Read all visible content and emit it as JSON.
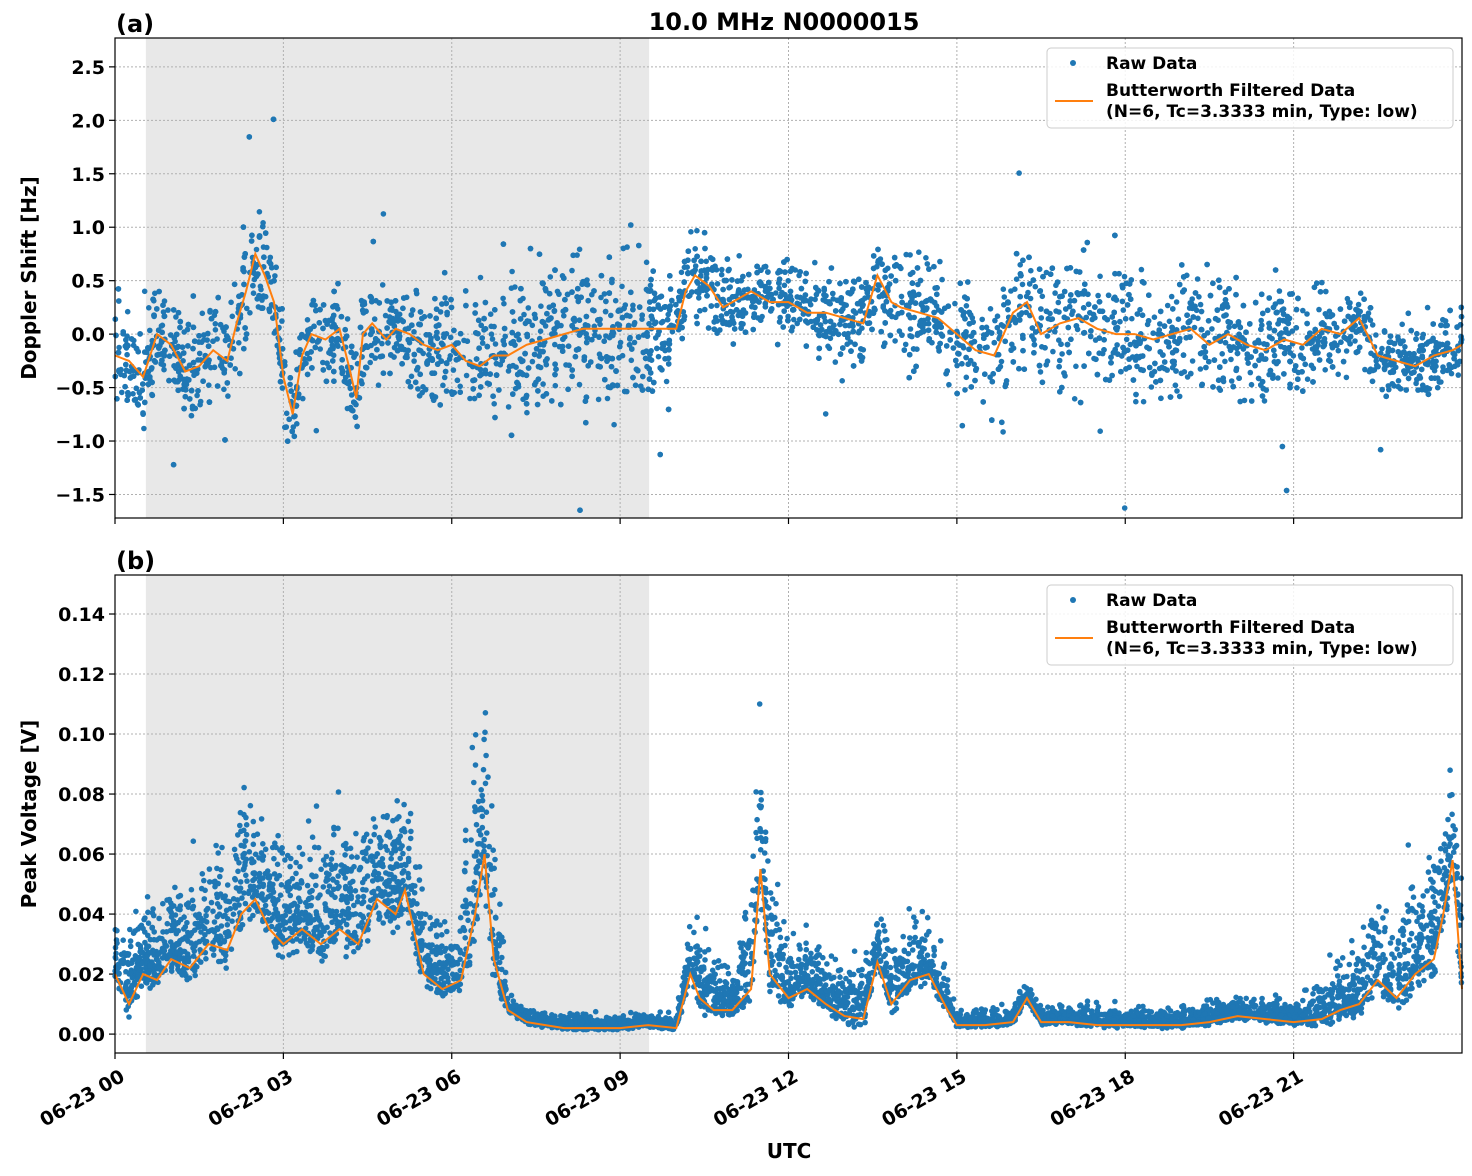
{
  "figure_title": "10.0 MHz N0000015",
  "x_axis_label": "UTC",
  "x_ticks": [
    "06-23 00",
    "06-23 03",
    "06-23 06",
    "06-23 09",
    "06-23 12",
    "06-23 15",
    "06-23 18",
    "06-23 21"
  ],
  "legend": {
    "raw": "Raw Data",
    "filtered_line1": "Butterworth Filtered Data",
    "filtered_line2": "(N=6, Tc=3.3333 min, Type: low)",
    "placement": "top-right"
  },
  "colors": {
    "raw": "#1f77b4",
    "filtered": "#ff7f0e",
    "shade": "#e8e8e8"
  },
  "chart_data": [
    {
      "type": "scatter",
      "panel_label": "(a)",
      "ylabel": "Doppler Shift [Hz]",
      "xlim": [
        "00:00",
        "24:00"
      ],
      "ylim": [
        -1.72,
        2.77
      ],
      "y_ticks": [
        "2.5",
        "2.0",
        "1.5",
        "1.0",
        "0.5",
        "0.0",
        "−0.5",
        "−1.0",
        "−1.5"
      ],
      "y_tick_values": [
        2.5,
        2.0,
        1.5,
        1.0,
        0.5,
        0.0,
        -0.5,
        -1.0,
        -1.5
      ],
      "grid": true,
      "shaded_interval": [
        "00:33",
        "09:31"
      ],
      "filtered": {
        "x": [
          "00:00",
          "00:15",
          "00:30",
          "00:45",
          "01:00",
          "01:15",
          "01:30",
          "01:45",
          "02:00",
          "02:10",
          "02:20",
          "02:30",
          "02:40",
          "02:50",
          "03:00",
          "03:10",
          "03:20",
          "03:30",
          "03:45",
          "04:00",
          "04:10",
          "04:18",
          "04:25",
          "04:35",
          "04:50",
          "05:00",
          "05:15",
          "05:30",
          "05:45",
          "06:00",
          "06:15",
          "06:30",
          "06:45",
          "07:00",
          "07:20",
          "07:40",
          "08:00",
          "08:20",
          "08:40",
          "09:00",
          "09:20",
          "09:40",
          "10:00",
          "10:10",
          "10:20",
          "10:35",
          "10:50",
          "11:00",
          "11:20",
          "11:40",
          "12:00",
          "12:20",
          "12:40",
          "13:00",
          "13:20",
          "13:35",
          "13:50",
          "14:00",
          "14:20",
          "14:40",
          "15:00",
          "15:20",
          "15:40",
          "16:00",
          "16:15",
          "16:30",
          "16:50",
          "17:10",
          "17:30",
          "17:50",
          "18:10",
          "18:30",
          "18:50",
          "19:10",
          "19:30",
          "19:50",
          "20:10",
          "20:30",
          "20:50",
          "21:10",
          "21:30",
          "21:50",
          "22:10",
          "22:30",
          "22:50",
          "23:10",
          "23:30",
          "23:50",
          "24:00"
        ],
        "y": [
          -0.2,
          -0.25,
          -0.4,
          0.0,
          -0.1,
          -0.35,
          -0.3,
          -0.15,
          -0.25,
          0.1,
          0.4,
          0.75,
          0.55,
          0.3,
          -0.4,
          -0.75,
          -0.2,
          0.0,
          -0.05,
          0.05,
          -0.3,
          -0.6,
          0.0,
          0.1,
          -0.05,
          0.05,
          0.0,
          -0.1,
          -0.15,
          -0.1,
          -0.25,
          -0.3,
          -0.2,
          -0.2,
          -0.1,
          -0.05,
          0.0,
          0.05,
          0.05,
          0.05,
          0.05,
          0.05,
          0.05,
          0.4,
          0.55,
          0.45,
          0.25,
          0.3,
          0.4,
          0.3,
          0.3,
          0.2,
          0.2,
          0.15,
          0.1,
          0.55,
          0.3,
          0.25,
          0.2,
          0.15,
          0.0,
          -0.15,
          -0.2,
          0.2,
          0.3,
          0.0,
          0.1,
          0.15,
          0.05,
          0.0,
          0.0,
          -0.05,
          0.0,
          0.05,
          -0.1,
          0.0,
          -0.1,
          -0.15,
          -0.05,
          -0.1,
          0.05,
          0.0,
          0.15,
          -0.2,
          -0.25,
          -0.3,
          -0.2,
          -0.15,
          -0.1
        ]
      },
      "raw_band": {
        "x": [
          "00:00",
          "02:00",
          "03:00",
          "04:00",
          "07:00",
          "09:30",
          "10:00",
          "12:00",
          "15:00",
          "18:00",
          "21:00",
          "22:30",
          "24:00"
        ],
        "halfwidth": [
          0.35,
          0.45,
          0.45,
          0.35,
          0.55,
          0.65,
          0.35,
          0.3,
          0.5,
          0.55,
          0.45,
          0.3,
          0.3
        ]
      }
    },
    {
      "type": "scatter",
      "panel_label": "(b)",
      "ylabel": "Peak Voltage [V]",
      "xlim": [
        "00:00",
        "24:00"
      ],
      "ylim": [
        -0.0063,
        0.153
      ],
      "y_ticks": [
        "0.14",
        "0.12",
        "0.10",
        "0.08",
        "0.06",
        "0.04",
        "0.02",
        "0.00"
      ],
      "y_tick_values": [
        0.14,
        0.12,
        0.1,
        0.08,
        0.06,
        0.04,
        0.02,
        0.0
      ],
      "grid": true,
      "shaded_interval": [
        "00:33",
        "09:31"
      ],
      "filtered": {
        "x": [
          "00:00",
          "00:15",
          "00:30",
          "00:45",
          "01:00",
          "01:20",
          "01:40",
          "02:00",
          "02:15",
          "02:30",
          "02:45",
          "03:00",
          "03:20",
          "03:40",
          "04:00",
          "04:20",
          "04:40",
          "05:00",
          "05:10",
          "05:30",
          "05:50",
          "06:10",
          "06:25",
          "06:35",
          "06:45",
          "07:00",
          "07:20",
          "07:40",
          "08:00",
          "08:30",
          "09:00",
          "09:30",
          "10:00",
          "10:15",
          "10:25",
          "10:40",
          "11:00",
          "11:20",
          "11:30",
          "11:40",
          "12:00",
          "12:20",
          "12:40",
          "13:00",
          "13:20",
          "13:35",
          "13:50",
          "14:10",
          "14:30",
          "14:50",
          "15:00",
          "15:30",
          "16:00",
          "16:15",
          "16:30",
          "17:00",
          "17:30",
          "18:00",
          "18:30",
          "19:00",
          "19:30",
          "20:00",
          "20:30",
          "21:00",
          "21:30",
          "21:50",
          "22:10",
          "22:30",
          "22:50",
          "23:10",
          "23:30",
          "23:40",
          "23:50",
          "24:00"
        ],
        "y": [
          0.02,
          0.01,
          0.02,
          0.018,
          0.025,
          0.022,
          0.03,
          0.028,
          0.04,
          0.045,
          0.035,
          0.03,
          0.035,
          0.03,
          0.035,
          0.03,
          0.045,
          0.04,
          0.048,
          0.02,
          0.015,
          0.018,
          0.04,
          0.06,
          0.025,
          0.008,
          0.004,
          0.003,
          0.002,
          0.002,
          0.002,
          0.003,
          0.002,
          0.02,
          0.012,
          0.008,
          0.008,
          0.015,
          0.055,
          0.02,
          0.012,
          0.015,
          0.01,
          0.006,
          0.005,
          0.024,
          0.01,
          0.018,
          0.02,
          0.008,
          0.003,
          0.003,
          0.004,
          0.012,
          0.004,
          0.004,
          0.003,
          0.003,
          0.003,
          0.003,
          0.004,
          0.006,
          0.005,
          0.004,
          0.005,
          0.008,
          0.01,
          0.018,
          0.012,
          0.02,
          0.025,
          0.04,
          0.058,
          0.015
        ]
      },
      "raw_band": {
        "x": [
          "00:00",
          "02:00",
          "05:00",
          "06:00",
          "06:35",
          "07:00",
          "10:00",
          "10:20",
          "11:00",
          "11:30",
          "12:00",
          "14:30",
          "15:00",
          "21:00",
          "22:00",
          "23:00",
          "24:00"
        ],
        "halfwidth": [
          0.012,
          0.02,
          0.025,
          0.01,
          0.04,
          0.003,
          0.002,
          0.015,
          0.008,
          0.03,
          0.01,
          0.012,
          0.003,
          0.004,
          0.012,
          0.02,
          0.02
        ]
      }
    }
  ]
}
